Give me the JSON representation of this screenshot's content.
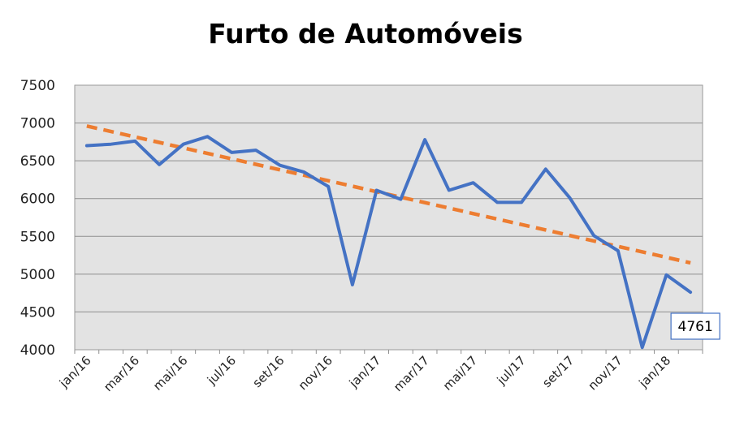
{
  "chart_data": {
    "type": "line",
    "title": "Furto de Automóveis",
    "xlabel": "",
    "ylabel": "",
    "ylim": [
      4000,
      7500
    ],
    "yticks": [
      "7500",
      "7000",
      "6500",
      "6000",
      "5500",
      "5000",
      "4500",
      "4000"
    ],
    "x_tick_labels": [
      "jan/16",
      "mar/16",
      "mai/16",
      "jul/16",
      "set/16",
      "nov/16",
      "jan/17",
      "mar/17",
      "mai/17",
      "jul/17",
      "set/17",
      "nov/17",
      "jan/18"
    ],
    "categories": [
      "jan/16",
      "fev/16",
      "mar/16",
      "abr/16",
      "mai/16",
      "jun/16",
      "jul/16",
      "ago/16",
      "set/16",
      "out/16",
      "nov/16",
      "dez/16",
      "jan/17",
      "fev/17",
      "mar/17",
      "abr/17",
      "mai/17",
      "jun/17",
      "jul/17",
      "ago/17",
      "set/17",
      "out/17",
      "nov/17",
      "dez/17",
      "jan/18",
      "fev/18"
    ],
    "series": [
      {
        "values": [
          6700,
          6720,
          6760,
          6450,
          6720,
          6820,
          6610,
          6640,
          6440,
          6350,
          6160,
          4860,
          6110,
          5990,
          6780,
          6110,
          6210,
          5950,
          5950,
          6390,
          6010,
          5510,
          5310,
          4030,
          4990,
          4761
        ],
        "color": "#4472C4"
      }
    ],
    "trendline": {
      "type": "linear",
      "start": 6960,
      "end": 5150,
      "color": "#ED7D31",
      "style": "dashed"
    },
    "data_label": {
      "text": "4761",
      "index": 25
    },
    "grid": true,
    "plot_background": "#E3E3E3",
    "legend": "none"
  }
}
